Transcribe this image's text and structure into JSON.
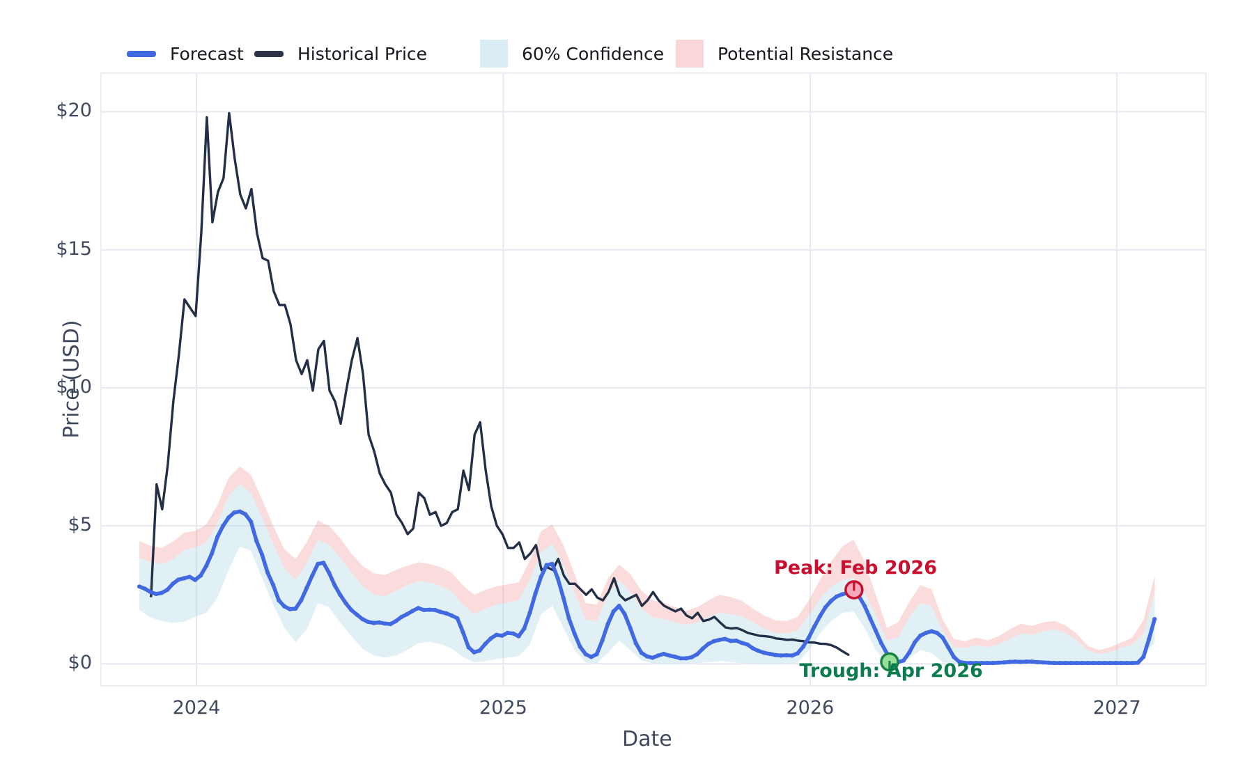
{
  "axes": {
    "x_title": "Date",
    "y_title": "Price (USD)"
  },
  "legend": {
    "items": [
      {
        "label": "Forecast",
        "swatch": "line",
        "color": "#4169e1"
      },
      {
        "label": "Historical Price",
        "swatch": "line",
        "color": "#2b3347"
      },
      {
        "label": "60% Confidence",
        "swatch": "box",
        "color": "#daecf4"
      },
      {
        "label": "Potential Resistance",
        "swatch": "box",
        "color": "#f9d6d8"
      }
    ]
  },
  "annotations": {
    "peak": {
      "text": "Peak: Feb 2026",
      "t": 2026.148,
      "v": 3.45,
      "color": "#c8102e",
      "marker": {
        "t": 2026.143,
        "v": 2.68,
        "fill": "#f8a8bc",
        "ring": "#c8102e",
        "tick": "up"
      }
    },
    "trough": {
      "text": "Trough: Apr 2026",
      "t": 2026.264,
      "v": -0.3,
      "color": "#0a7c4e",
      "marker": {
        "t": 2026.259,
        "v": 0.07,
        "fill": "#98e09a",
        "ring": "#158445",
        "tick": "down"
      }
    }
  },
  "colors": {
    "forecast_line": "#4169e1",
    "historical_line": "#232e47",
    "confidence_fill": "rgba(173,216,230,0.38)",
    "resistance_fill": "rgba(240,128,128,0.28)",
    "gridline": "#e6e9ef",
    "tick_text": "#3f4a5c"
  },
  "chart_data": {
    "type": "line",
    "title": "",
    "xlabel": "Date",
    "ylabel": "Price (USD)",
    "x_range": [
      2023.689,
      2027.29
    ],
    "y_range": [
      -0.8,
      21.4
    ],
    "grid": true,
    "legend_position": "top",
    "x_ticks": [
      {
        "value": 2024,
        "label": "2024"
      },
      {
        "value": 2025,
        "label": "2025"
      },
      {
        "value": 2026,
        "label": "2026"
      },
      {
        "value": 2027,
        "label": "2027"
      }
    ],
    "y_ticks": [
      {
        "value": 0,
        "label": "$0"
      },
      {
        "value": 5,
        "label": "$5"
      },
      {
        "value": 10,
        "label": "$10"
      },
      {
        "value": 15,
        "label": "$15"
      },
      {
        "value": 20,
        "label": "$20"
      }
    ],
    "series": [
      {
        "name": "Historical Price",
        "kind": "line",
        "t0": 2023.852,
        "dt": 0.01818,
        "values": [
          2.45,
          6.5,
          5.6,
          7.2,
          9.5,
          11.2,
          13.2,
          12.9,
          12.6,
          15.6,
          19.8,
          16.0,
          17.1,
          17.6,
          19.95,
          18.3,
          17.0,
          16.5,
          17.2,
          15.6,
          14.7,
          14.6,
          13.5,
          13.0,
          13.0,
          12.3,
          11.0,
          10.5,
          11.0,
          9.9,
          11.4,
          11.7,
          9.9,
          9.5,
          8.7,
          9.9,
          11.0,
          11.8,
          10.5,
          8.3,
          7.7,
          6.9,
          6.5,
          6.2,
          5.4,
          5.1,
          4.7,
          4.9,
          6.2,
          6.0,
          5.4,
          5.5,
          5.0,
          5.1,
          5.5,
          5.6,
          7.0,
          6.3,
          8.3,
          8.75,
          7.0,
          5.7,
          5.0,
          4.7,
          4.2,
          4.2,
          4.4,
          3.8,
          4.0,
          4.3,
          3.4,
          3.5,
          3.4,
          3.8,
          3.2,
          2.9,
          2.9,
          2.7,
          2.5,
          2.7,
          2.4,
          2.3,
          2.6,
          3.1,
          2.5,
          2.3,
          2.4,
          2.5,
          2.1,
          2.3,
          2.6,
          2.3,
          2.1,
          2.0,
          1.9,
          2.0,
          1.75,
          1.65,
          1.85,
          1.55,
          1.6,
          1.7,
          1.5,
          1.32,
          1.28,
          1.3,
          1.22,
          1.12,
          1.07,
          1.02,
          1.0,
          0.98,
          0.92,
          0.9,
          0.87,
          0.88,
          0.84,
          0.82,
          0.78,
          0.77,
          0.73,
          0.72,
          0.67,
          0.58,
          0.45,
          0.33
        ]
      },
      {
        "name": "Forecast",
        "kind": "line_dots",
        "t0": 2023.814,
        "dt": 0.01818,
        "values": [
          2.8,
          2.72,
          2.6,
          2.53,
          2.57,
          2.68,
          2.9,
          3.05,
          3.1,
          3.15,
          3.04,
          3.2,
          3.55,
          4.0,
          4.6,
          5.0,
          5.3,
          5.48,
          5.52,
          5.42,
          5.15,
          4.45,
          3.95,
          3.3,
          2.85,
          2.3,
          2.08,
          1.98,
          2.0,
          2.3,
          2.75,
          3.2,
          3.62,
          3.66,
          3.3,
          2.85,
          2.5,
          2.2,
          1.95,
          1.78,
          1.62,
          1.52,
          1.48,
          1.5,
          1.46,
          1.44,
          1.55,
          1.7,
          1.8,
          1.92,
          2.02,
          1.95,
          1.96,
          1.95,
          1.88,
          1.83,
          1.75,
          1.65,
          1.15,
          0.6,
          0.42,
          0.48,
          0.72,
          0.92,
          1.05,
          1.02,
          1.12,
          1.1,
          1.0,
          1.28,
          1.85,
          2.55,
          3.15,
          3.58,
          3.62,
          3.1,
          2.4,
          1.65,
          1.1,
          0.62,
          0.35,
          0.25,
          0.35,
          0.85,
          1.45,
          1.9,
          2.1,
          1.8,
          1.3,
          0.75,
          0.4,
          0.27,
          0.22,
          0.3,
          0.36,
          0.3,
          0.26,
          0.2,
          0.2,
          0.24,
          0.35,
          0.55,
          0.72,
          0.82,
          0.87,
          0.9,
          0.83,
          0.84,
          0.76,
          0.7,
          0.56,
          0.47,
          0.4,
          0.36,
          0.32,
          0.3,
          0.31,
          0.3,
          0.38,
          0.62,
          0.95,
          1.35,
          1.72,
          2.05,
          2.28,
          2.44,
          2.52,
          2.57,
          2.6,
          2.45,
          2.1,
          1.65,
          1.2,
          0.75,
          0.38,
          0.12,
          0.06,
          0.12,
          0.4,
          0.78,
          1.02,
          1.12,
          1.18,
          1.12,
          0.95,
          0.6,
          0.25,
          0.07,
          0.03,
          0.03,
          0.03,
          0.03,
          0.03,
          0.03,
          0.04,
          0.05,
          0.07,
          0.08,
          0.07,
          0.08,
          0.08,
          0.06,
          0.05,
          0.04,
          0.03,
          0.03,
          0.03,
          0.03,
          0.03,
          0.03,
          0.03,
          0.03,
          0.03,
          0.03,
          0.03,
          0.03,
          0.03,
          0.03,
          0.03,
          0.04,
          0.25,
          0.9,
          1.62
        ]
      }
    ],
    "bands": {
      "confidence": {
        "name": "60% Confidence",
        "t0": 2023.814,
        "dt": 0.036364,
        "upper": [
          3.85,
          3.68,
          3.62,
          3.78,
          4.12,
          4.22,
          4.4,
          5.1,
          6.1,
          6.5,
          6.2,
          5.3,
          4.35,
          3.45,
          3.05,
          3.65,
          4.5,
          4.3,
          3.85,
          3.3,
          2.82,
          2.52,
          2.45,
          2.65,
          2.85,
          3.0,
          2.95,
          2.82,
          2.62,
          2.15,
          1.8,
          2.0,
          2.15,
          2.22,
          2.3,
          3.05,
          4.05,
          4.35,
          3.6,
          2.6,
          1.6,
          1.55,
          2.5,
          3.05,
          2.6,
          2.0,
          1.68,
          1.63,
          1.5,
          1.42,
          1.5,
          1.7,
          1.85,
          1.8,
          1.72,
          1.5,
          1.28,
          1.12,
          1.1,
          1.22,
          1.75,
          2.35,
          2.8,
          3.05,
          3.1,
          2.6,
          1.75,
          0.85,
          0.95,
          1.7,
          2.2,
          2.1,
          1.2,
          0.6,
          0.58,
          0.68,
          0.6,
          0.72,
          0.9,
          1.1,
          1.05,
          1.18,
          1.25,
          1.12,
          0.85,
          0.5,
          0.36,
          0.42,
          0.58,
          0.7,
          1.1,
          2.6
        ],
        "lower": [
          1.95,
          1.68,
          1.55,
          1.48,
          1.52,
          1.7,
          1.85,
          2.4,
          3.4,
          4.25,
          4.1,
          3.1,
          2.15,
          1.3,
          0.78,
          1.25,
          2.2,
          2.05,
          1.5,
          1.0,
          0.55,
          0.3,
          0.22,
          0.3,
          0.5,
          0.75,
          0.8,
          0.72,
          0.55,
          0.25,
          0.05,
          0.1,
          0.18,
          0.22,
          0.28,
          0.7,
          1.8,
          2.1,
          1.3,
          0.5,
          0.05,
          0.02,
          0.4,
          0.85,
          0.5,
          0.12,
          0.02,
          0.02,
          0.02,
          0.02,
          0.03,
          0.06,
          0.1,
          0.06,
          0.03,
          0.02,
          0.02,
          0.02,
          0.02,
          0.03,
          0.5,
          1.1,
          1.55,
          1.85,
          1.9,
          1.3,
          0.5,
          0.02,
          0.02,
          0.2,
          0.5,
          0.4,
          0.05,
          0.02,
          0.02,
          0.02,
          0.02,
          0.02,
          0.02,
          0.02,
          0.02,
          0.02,
          0.02,
          0.02,
          0.02,
          0.02,
          0.02,
          0.02,
          0.02,
          0.02,
          0.25,
          0.8
        ]
      },
      "resistance": {
        "name": "Potential Resistance",
        "t0": 2023.814,
        "dt": 0.036364,
        "note": "band drawn between confidence.upper and this upper edge",
        "upper": [
          4.45,
          4.28,
          4.2,
          4.42,
          4.75,
          4.82,
          5.05,
          5.75,
          6.75,
          7.15,
          6.85,
          5.95,
          5.0,
          4.15,
          3.8,
          4.4,
          5.2,
          5.0,
          4.55,
          4.0,
          3.55,
          3.28,
          3.22,
          3.4,
          3.55,
          3.68,
          3.62,
          3.5,
          3.3,
          2.85,
          2.5,
          2.68,
          2.8,
          2.88,
          2.95,
          3.75,
          4.8,
          5.05,
          4.3,
          3.25,
          2.2,
          2.15,
          3.1,
          3.6,
          3.25,
          2.65,
          2.3,
          2.2,
          2.05,
          1.92,
          2.05,
          2.3,
          2.5,
          2.42,
          2.28,
          2.0,
          1.75,
          1.58,
          1.55,
          1.7,
          2.3,
          3.05,
          3.7,
          4.25,
          4.5,
          3.7,
          2.5,
          1.3,
          1.5,
          2.25,
          2.85,
          2.7,
          1.6,
          0.9,
          0.82,
          0.95,
          0.85,
          1.0,
          1.25,
          1.45,
          1.38,
          1.5,
          1.55,
          1.4,
          1.1,
          0.65,
          0.5,
          0.6,
          0.78,
          0.95,
          1.6,
          3.2
        ]
      }
    }
  }
}
